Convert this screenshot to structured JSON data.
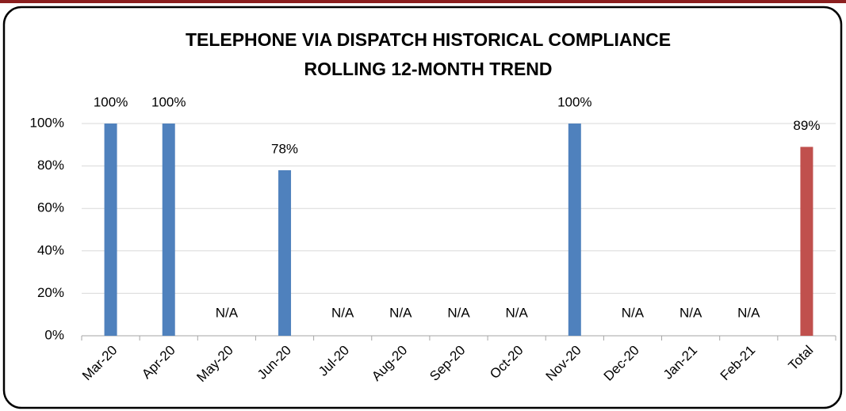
{
  "chart_data": {
    "type": "bar",
    "title": "TELEPHONE  VIA DISPATCH HISTORICAL COMPLIANCE",
    "subtitle": "ROLLING 12-MONTH TREND",
    "categories": [
      "Mar-20",
      "Apr-20",
      "May-20",
      "Jun-20",
      "Jul-20",
      "Aug-20",
      "Sep-20",
      "Oct-20",
      "Nov-20",
      "Dec-20",
      "Jan-21",
      "Feb-21",
      "Total"
    ],
    "values": [
      100,
      100,
      null,
      78,
      null,
      null,
      null,
      null,
      100,
      null,
      null,
      null,
      89
    ],
    "value_labels": [
      "100%",
      "100%",
      "N/A",
      "78%",
      "N/A",
      "N/A",
      "N/A",
      "N/A",
      "100%",
      "N/A",
      "N/A",
      "N/A",
      "89%"
    ],
    "colors": [
      "#4f81bd",
      "#4f81bd",
      "#4f81bd",
      "#4f81bd",
      "#4f81bd",
      "#4f81bd",
      "#4f81bd",
      "#4f81bd",
      "#4f81bd",
      "#4f81bd",
      "#4f81bd",
      "#4f81bd",
      "#c0504d"
    ],
    "ylim": [
      0,
      100
    ],
    "yticks": [
      {
        "value": 0,
        "label": "0%"
      },
      {
        "value": 20,
        "label": "20%"
      },
      {
        "value": 40,
        "label": "40%"
      },
      {
        "value": 60,
        "label": "60%"
      },
      {
        "value": 80,
        "label": "80%"
      },
      {
        "value": 100,
        "label": "100%"
      }
    ],
    "grid": true
  }
}
